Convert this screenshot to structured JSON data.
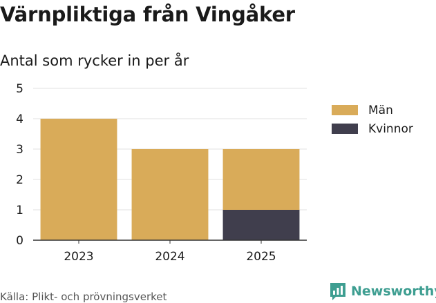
{
  "title": "Värnpliktiga från Vingåker",
  "subtitle": "Antal som rycker in per år",
  "source": "Källa: Plikt- och prövningsverket",
  "brand": {
    "name": "Newsworthy",
    "icon": "newsworthy-logo-icon",
    "color": "#3e9e91"
  },
  "chart_data": {
    "type": "bar",
    "stacked": true,
    "categories": [
      "2023",
      "2024",
      "2025"
    ],
    "series": [
      {
        "name": "Män",
        "values": [
          4,
          3,
          2
        ],
        "color": "#d9ab59"
      },
      {
        "name": "Kvinnor",
        "values": [
          0,
          0,
          1
        ],
        "color": "#403e4d"
      }
    ],
    "ylim": [
      0,
      5
    ],
    "yticks": [
      0,
      1,
      2,
      3,
      4,
      5
    ],
    "grid": true,
    "legend": "right"
  }
}
